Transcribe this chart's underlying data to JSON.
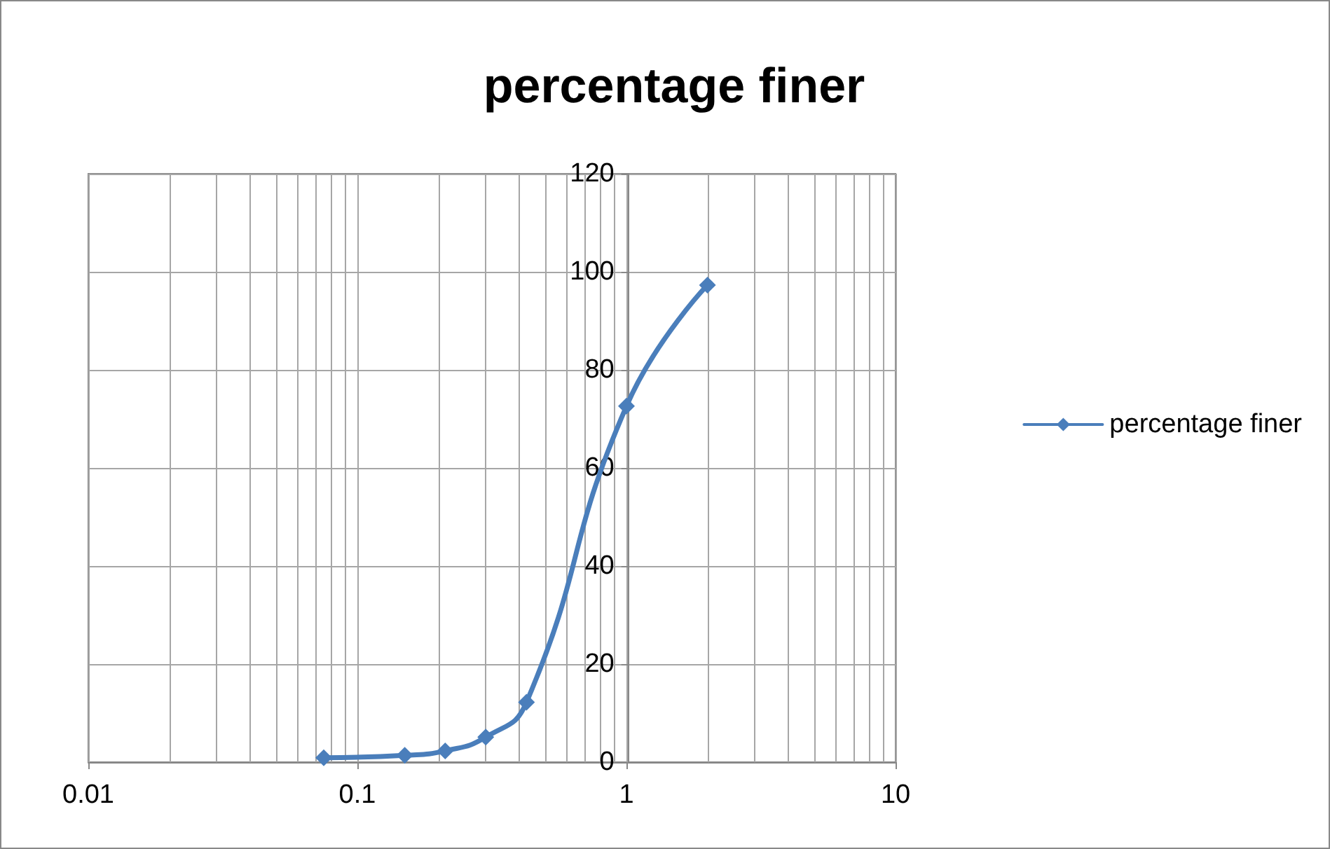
{
  "chart_data": {
    "type": "line",
    "title": "percentage finer",
    "x": [
      0.075,
      0.15,
      0.212,
      0.3,
      0.425,
      1,
      2
    ],
    "series": [
      {
        "name": "percentage finer",
        "color": "#4a7ebb",
        "values": [
          0.9,
          1.4,
          2.3,
          5.1,
          12.2,
          72.6,
          97.3
        ]
      }
    ],
    "log": "x",
    "xlim": [
      0.01,
      10
    ],
    "xticks": [
      0.01,
      0.1,
      1,
      10
    ],
    "ylim": [
      0,
      120
    ],
    "yticks": [
      0,
      20,
      40,
      60,
      80,
      100,
      120
    ],
    "grid": true,
    "legend": "right",
    "marker": "diamond",
    "line_style": "solid"
  }
}
